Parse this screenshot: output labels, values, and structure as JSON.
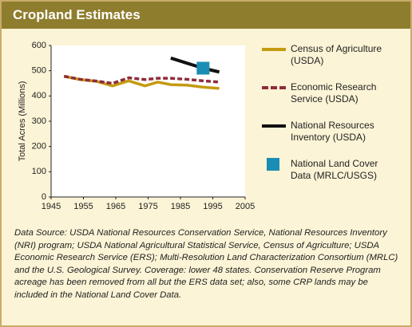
{
  "chart_data": {
    "type": "line",
    "title": "Cropland Estimates",
    "y_label": "Total Acres (Millions)",
    "xlim": [
      1945,
      2005
    ],
    "xticks": [
      1945,
      1955,
      1965,
      1975,
      1985,
      1995,
      2005
    ],
    "ylim": [
      0,
      600
    ],
    "yticks": [
      0,
      100,
      200,
      300,
      400,
      500,
      600
    ],
    "grid": false,
    "series": [
      {
        "name": "Census of Agriculture (USDA)",
        "color": "#c49a10",
        "style": "solid",
        "x": [
          1949,
          1954,
          1959,
          1964,
          1969,
          1974,
          1978,
          1982,
          1987,
          1992,
          1997
        ],
        "values": [
          478,
          465,
          458,
          440,
          460,
          440,
          455,
          445,
          443,
          435,
          430
        ]
      },
      {
        "name": "Economic Research Service (USDA)",
        "color": "#8e2c3c",
        "style": "dashed",
        "x": [
          1949,
          1954,
          1959,
          1964,
          1969,
          1974,
          1978,
          1982,
          1987,
          1992,
          1997
        ],
        "values": [
          478,
          466,
          459,
          450,
          472,
          465,
          470,
          470,
          466,
          460,
          455
        ]
      },
      {
        "name": "National Resources Inventory (USDA)",
        "color": "#111111",
        "style": "solid",
        "x": [
          1982,
          1987,
          1992,
          1997
        ],
        "values": [
          550,
          530,
          510,
          495
        ]
      },
      {
        "name": "National Land Cover Data (MRLC/USGS)",
        "color": "#1a8db4",
        "style": "square",
        "x": [
          1992
        ],
        "values": [
          510
        ]
      }
    ],
    "source": "Data Source: USDA National Resources Conservation Service, National Resources Inventory (NRI) program; USDA National Agricultural Statistical Service, Census of Agriculture; USDA Economic Research Service (ERS); Multi-Resolution Land Characterization Consortium (MRLC) and the U.S. Geological Survey. Coverage: lower 48 states. Conservation Reserve Program acreage has been removed from all but the ERS data set; also, some CRP lands may be included in the National Land Cover Data."
  }
}
